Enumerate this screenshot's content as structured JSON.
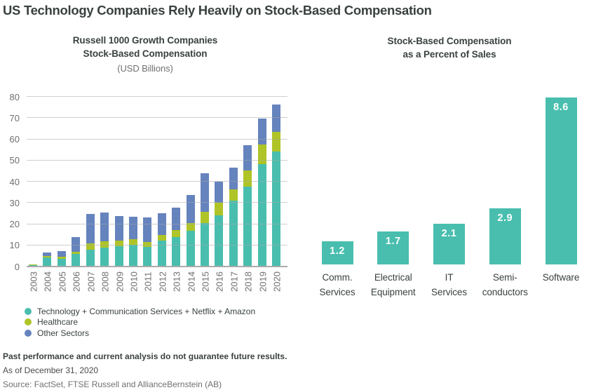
{
  "title": "US Technology Companies Rely Heavily on Stock-Based Compensation",
  "colors": {
    "teal": "#49BEAE",
    "olive": "#AFC427",
    "blue": "#6583BD",
    "grid": "#C9C9C9",
    "axis_line": "#ABABAB",
    "axis_text": "#6F6F6F",
    "heading_text": "#39413F",
    "bar_value_text": "#FFFFFF"
  },
  "chart_data": [
    {
      "type": "bar",
      "stacked": true,
      "title_lines": [
        "Russell 1000 Growth Companies",
        "Stock-Based Compensation"
      ],
      "subtitle": "(USD Billions)",
      "categories": [
        "2003",
        "2004",
        "2005",
        "2006",
        "2007",
        "2008",
        "2009",
        "2010",
        "2011",
        "2012",
        "2013",
        "2014",
        "2015",
        "2016",
        "2017",
        "2018",
        "2019",
        "2020"
      ],
      "series": [
        {
          "name": "Technology + Communication Services + Netflix + Amazon",
          "color_key": "teal",
          "values": [
            0.3,
            3.9,
            3.3,
            5.7,
            7.7,
            8.5,
            9.4,
            9.9,
            9.0,
            11.8,
            13.7,
            16.6,
            20.3,
            23.8,
            30.8,
            37.3,
            47.9,
            53.8
          ]
        },
        {
          "name": "Healthcare",
          "color_key": "olive",
          "values": [
            0.3,
            0.7,
            1.0,
            1.0,
            3.0,
            3.0,
            2.6,
            2.6,
            2.4,
            2.9,
            3.1,
            3.5,
            5.2,
            5.8,
            5.1,
            7.5,
            9.2,
            9.5
          ]
        },
        {
          "name": "Other Sectors",
          "color_key": "blue",
          "values": [
            0.1,
            1.7,
            2.8,
            6.7,
            13.6,
            13.6,
            11.5,
            10.7,
            11.3,
            10.1,
            10.7,
            13.4,
            18.0,
            10.1,
            10.5,
            12.1,
            12.2,
            12.8
          ]
        }
      ],
      "ylim": [
        0,
        80
      ],
      "yticks": [
        0,
        10,
        20,
        30,
        40,
        50,
        60,
        70,
        80
      ],
      "grid": true,
      "legend_position": "bottom-left"
    },
    {
      "type": "bar",
      "stacked": false,
      "title_lines": [
        "Stock-Based Compensation",
        "as a Percent of Sales"
      ],
      "categories": [
        [
          "Comm.",
          "Services"
        ],
        [
          "Electrical",
          "Equipment"
        ],
        [
          "IT",
          "Services"
        ],
        [
          "Semi-",
          "conductors"
        ],
        [
          "Software"
        ]
      ],
      "values": [
        1.2,
        1.7,
        2.1,
        2.9,
        8.6
      ],
      "data_labels": [
        "1.2",
        "1.7",
        "2.1",
        "2.9",
        "8.6"
      ],
      "ylim": [
        0,
        8.8
      ],
      "grid": false,
      "legend_position": "none"
    }
  ],
  "footer": {
    "disclaimer": "Past performance and current analysis do not guarantee future results.",
    "as_of": "As of December 31, 2020",
    "source": "Source: FactSet, FTSE Russell and AllianceBernstein (AB)"
  }
}
